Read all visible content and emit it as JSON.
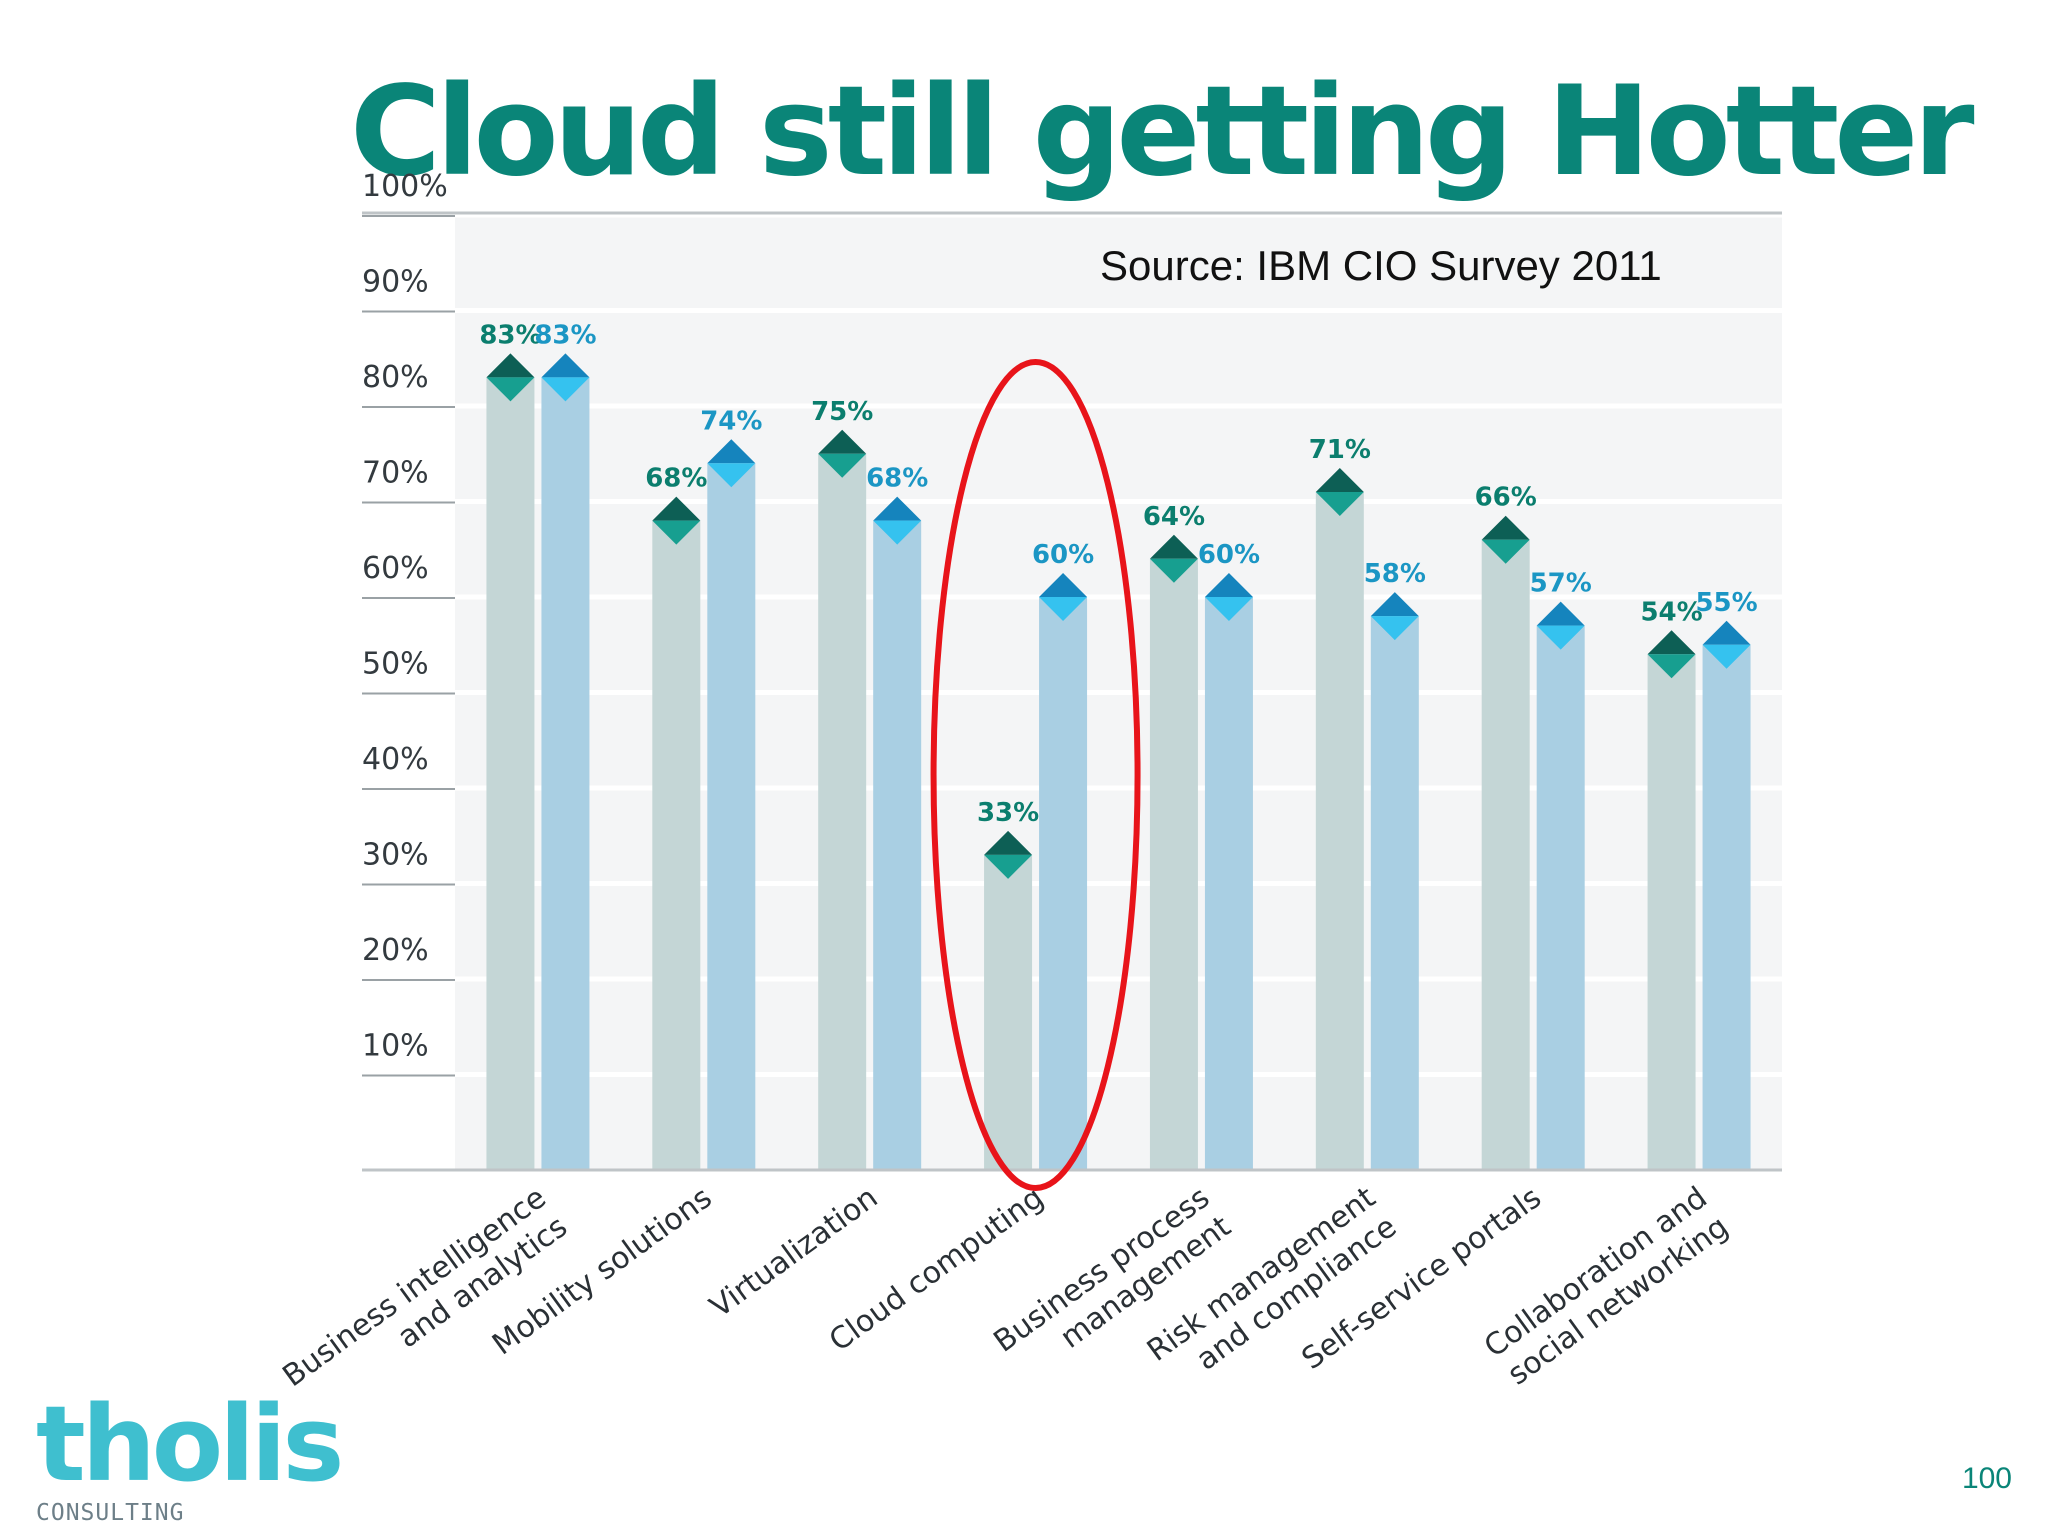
{
  "slide": {
    "title": "Cloud still getting Hotter",
    "page_number": "100",
    "logo": {
      "word": "tholis",
      "sub": "CONSULTING"
    }
  },
  "colors": {
    "title": "#0a8578",
    "series_a": "#0b7e6e",
    "series_a_bar": "#c4d6d6",
    "series_b": "#1b96c4",
    "series_b_bar": "#a9cfe3",
    "highlight": "#e8141a",
    "logo": "#3fbfcf"
  },
  "chart_data": {
    "type": "bar",
    "annotation": "Source: IBM CIO Survey 2011",
    "y_ticks": [
      "10%",
      "20%",
      "30%",
      "40%",
      "50%",
      "60%",
      "70%",
      "80%",
      "90%",
      "100%"
    ],
    "ylim": [
      0,
      100
    ],
    "categories": [
      [
        "Business intelligence",
        "and analytics"
      ],
      [
        "Mobility solutions"
      ],
      [
        "Virtualization"
      ],
      [
        "Cloud computing"
      ],
      [
        "Business process",
        "management"
      ],
      [
        "Risk management",
        "and compliance"
      ],
      [
        "Self-service portals"
      ],
      [
        "Collaboration and",
        "social networking"
      ]
    ],
    "series": [
      {
        "values": [
          83,
          68,
          75,
          33,
          64,
          71,
          66,
          54
        ]
      },
      {
        "values": [
          83,
          74,
          68,
          60,
          60,
          58,
          57,
          55
        ]
      }
    ],
    "highlighted_category": "Cloud computing",
    "grid": true
  }
}
